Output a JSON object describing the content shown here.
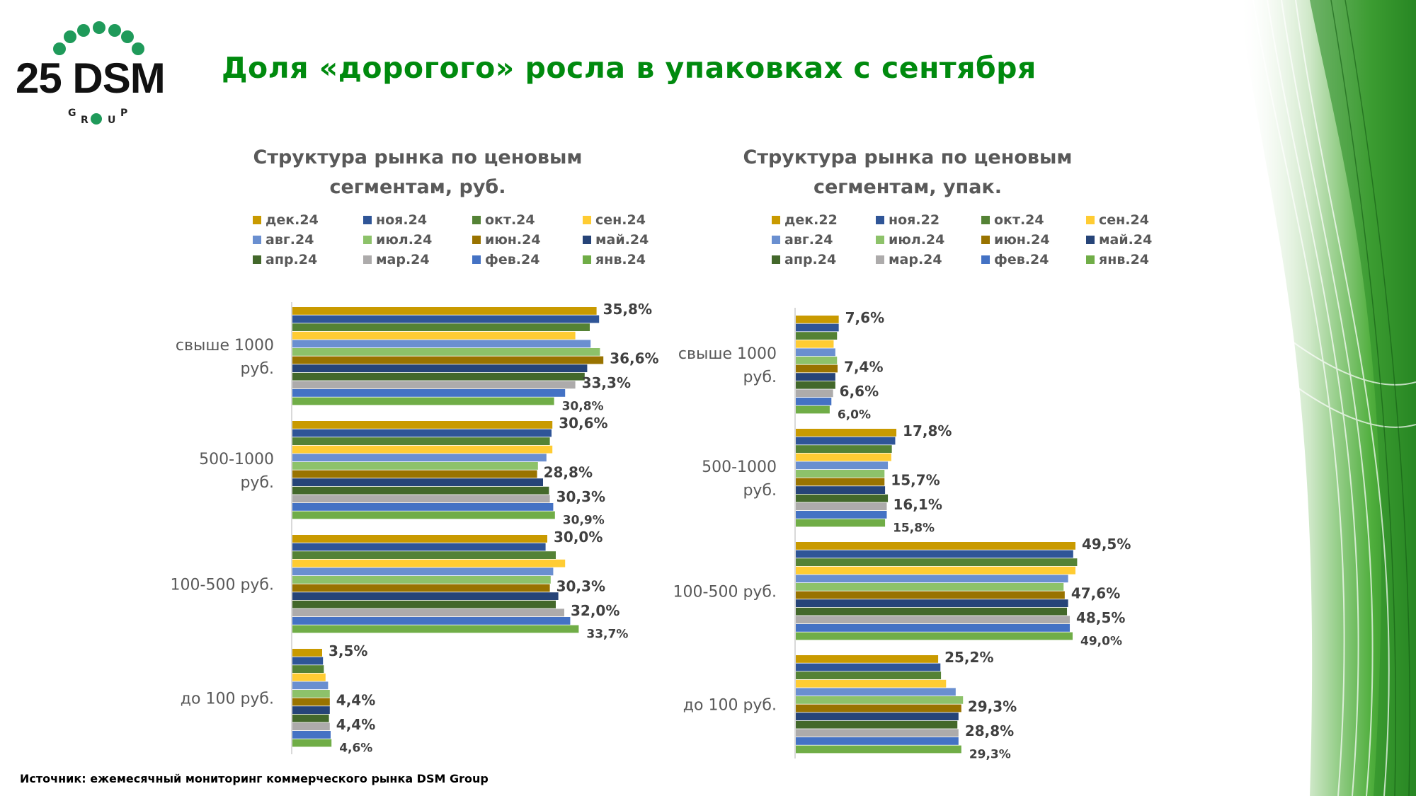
{
  "logo": {
    "text": "25 DSM",
    "subtext": "GROUP"
  },
  "title": "Доля «дорогого» росла в упаковках с сентября",
  "footer": "Источник: ежемесячный мониторинг коммерческого рынка DSM Group",
  "chart_data": [
    {
      "type": "bar",
      "orientation": "horizontal",
      "title_line1": "Структура рынка по ценовым",
      "title_line2": "сегментам, руб.",
      "categories": [
        "свыше 1000 руб.",
        "500-1000 руб.",
        "100-500 руб.",
        "до 100 руб."
      ],
      "category_lines": [
        [
          "свыше 1000",
          "руб."
        ],
        [
          "500-1000",
          "руб."
        ],
        [
          "100-500 руб."
        ],
        [
          "до 100 руб."
        ]
      ],
      "unit": "%",
      "legend_placement": "top",
      "series": [
        {
          "name": "дек.24",
          "color": "#C99A00",
          "values": [
            35.8,
            30.6,
            30.0,
            3.5
          ],
          "labeled": true
        },
        {
          "name": "ноя.24",
          "color": "#2F5597",
          "values": [
            36.1,
            30.5,
            29.8,
            3.6
          ]
        },
        {
          "name": "окт.24",
          "color": "#548235",
          "values": [
            35.0,
            30.3,
            31.0,
            3.7
          ]
        },
        {
          "name": "сен.24",
          "color": "#FFCC33",
          "values": [
            33.3,
            30.6,
            32.1,
            3.9
          ]
        },
        {
          "name": "авг.24",
          "color": "#6A8FD0",
          "values": [
            35.1,
            29.9,
            30.7,
            4.2
          ]
        },
        {
          "name": "июл.24",
          "color": "#8DC26A",
          "values": [
            36.2,
            28.9,
            30.4,
            4.4
          ]
        },
        {
          "name": "июн.24",
          "color": "#997300",
          "values": [
            36.6,
            28.8,
            30.3,
            4.4
          ],
          "labeled": true
        },
        {
          "name": "май.24",
          "color": "#264478",
          "values": [
            34.7,
            29.5,
            31.3,
            4.4
          ]
        },
        {
          "name": "апр.24",
          "color": "#43682B",
          "values": [
            34.4,
            30.2,
            31.0,
            4.3
          ]
        },
        {
          "name": "мар.24",
          "color": "#ADABAB",
          "values": [
            33.3,
            30.3,
            32.0,
            4.4
          ],
          "labeled": true
        },
        {
          "name": "фев.24",
          "color": "#4472C4",
          "values": [
            32.1,
            30.7,
            32.7,
            4.5
          ]
        },
        {
          "name": "янв.24",
          "color": "#70AD47",
          "values": [
            30.8,
            30.9,
            33.7,
            4.6
          ],
          "labeled": true
        }
      ],
      "data_labels": [
        [
          "35,8%",
          "36,6%",
          "33,3%",
          "30,8%"
        ],
        [
          "30,6%",
          "28,8%",
          "30,3%",
          "30,9%"
        ],
        [
          "30,0%",
          "30,3%",
          "32,0%",
          "33,7%"
        ],
        [
          "3,5%",
          "4,4%",
          "4,4%",
          "4,6%"
        ]
      ]
    },
    {
      "type": "bar",
      "orientation": "horizontal",
      "title_line1": "Структура рынка по ценовым",
      "title_line2": "сегментам, упак.",
      "categories": [
        "свыше 1000 руб.",
        "500-1000 руб.",
        "100-500 руб.",
        "до 100 руб."
      ],
      "category_lines": [
        [
          "свыше 1000",
          "руб."
        ],
        [
          "500-1000",
          "руб."
        ],
        [
          "100-500 руб."
        ],
        [
          "до 100 руб."
        ]
      ],
      "unit": "%",
      "legend_placement": "top",
      "series": [
        {
          "name": "дек.22",
          "color": "#C99A00",
          "values": [
            7.6,
            17.8,
            49.5,
            25.2
          ],
          "labeled": true
        },
        {
          "name": "ноя.22",
          "color": "#2F5597",
          "values": [
            7.6,
            17.6,
            49.1,
            25.6
          ]
        },
        {
          "name": "окт.24",
          "color": "#548235",
          "values": [
            7.3,
            17.0,
            49.8,
            25.7
          ]
        },
        {
          "name": "сен.24",
          "color": "#FFCC33",
          "values": [
            6.7,
            16.9,
            49.5,
            26.6
          ]
        },
        {
          "name": "авг.24",
          "color": "#6A8FD0",
          "values": [
            7.0,
            16.3,
            48.2,
            28.3
          ]
        },
        {
          "name": "июл.24",
          "color": "#8DC26A",
          "values": [
            7.3,
            15.7,
            47.4,
            29.6
          ]
        },
        {
          "name": "июн.24",
          "color": "#997300",
          "values": [
            7.4,
            15.7,
            47.6,
            29.3
          ],
          "labeled": true
        },
        {
          "name": "май.24",
          "color": "#264478",
          "values": [
            7.0,
            15.8,
            48.2,
            28.8
          ]
        },
        {
          "name": "апр.24",
          "color": "#43682B",
          "values": [
            7.0,
            16.3,
            48.0,
            28.6
          ]
        },
        {
          "name": "мар.24",
          "color": "#ADABAB",
          "values": [
            6.6,
            16.1,
            48.5,
            28.8
          ],
          "labeled": true
        },
        {
          "name": "фев.24",
          "color": "#4472C4",
          "values": [
            6.3,
            16.1,
            48.5,
            28.8
          ]
        },
        {
          "name": "янв.24",
          "color": "#70AD47",
          "values": [
            6.0,
            15.8,
            49.0,
            29.3
          ],
          "labeled": true
        }
      ],
      "data_labels": [
        [
          "7,6%",
          "7,4%",
          "6,6%",
          "6,0%"
        ],
        [
          "17,8%",
          "15,7%",
          "16,1%",
          "15,8%"
        ],
        [
          "49,5%",
          "47,6%",
          "48,5%",
          "49,0%"
        ],
        [
          "25,2%",
          "29,3%",
          "28,8%",
          "29,3%"
        ]
      ]
    }
  ]
}
